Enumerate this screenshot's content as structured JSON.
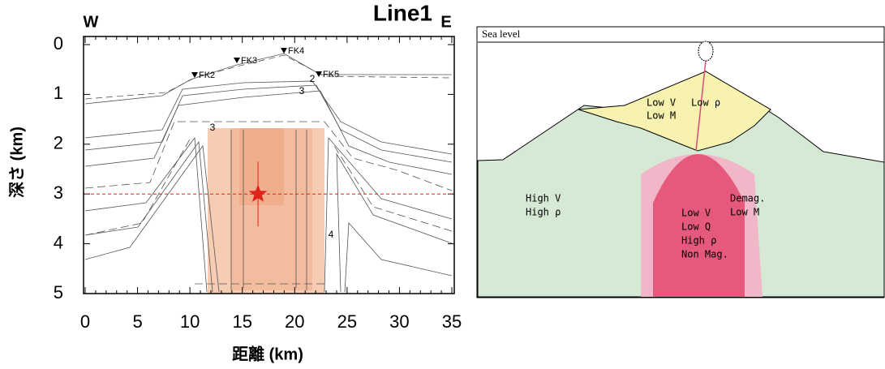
{
  "section": {
    "title": "Line1",
    "west": "W",
    "east": "E",
    "xlabel": "距離 (km)",
    "ylabel": "深さ (km)",
    "xlim": [
      0,
      35
    ],
    "ylim": [
      0,
      5
    ],
    "xticks": [
      0,
      5,
      10,
      15,
      20,
      25,
      30,
      35
    ],
    "yticks": [
      0,
      1,
      2,
      3,
      4,
      5
    ],
    "stations": [
      "FK2",
      "FK3",
      "FK4",
      "FK5"
    ],
    "contour_labels": [
      "2",
      "3",
      "3",
      "4"
    ],
    "hypocenter": {
      "x": 16.5,
      "depth": 3,
      "depth_error": 0.65
    }
  },
  "model": {
    "sea_level": "Sea level",
    "zones": [
      {
        "lines": [
          "Low V",
          "Low ρ",
          "Low M"
        ]
      },
      {
        "lines": [
          "High V",
          "High ρ"
        ]
      },
      {
        "lines": [
          "Demag.",
          "Low M"
        ]
      },
      {
        "lines": [
          "Low V",
          "Low Q",
          "High ρ",
          "Non Mag."
        ]
      }
    ]
  }
}
